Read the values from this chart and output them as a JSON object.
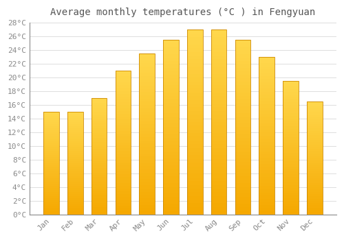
{
  "title": "Average monthly temperatures (°C ) in Fengyuan",
  "months": [
    "Jan",
    "Feb",
    "Mar",
    "Apr",
    "May",
    "Jun",
    "Jul",
    "Aug",
    "Sep",
    "Oct",
    "Nov",
    "Dec"
  ],
  "temperatures": [
    15.0,
    15.0,
    17.0,
    21.0,
    23.5,
    25.5,
    27.0,
    27.0,
    25.5,
    23.0,
    19.5,
    16.5
  ],
  "bar_color_top": "#FFD84D",
  "bar_color_bottom": "#F5A800",
  "bar_edge_color": "#CC8800",
  "ylim": [
    0,
    28
  ],
  "ytick_step": 2,
  "background_color": "#ffffff",
  "grid_color": "#dddddd",
  "title_fontsize": 10,
  "tick_fontsize": 8,
  "tick_label_color": "#888888",
  "bar_width": 0.65,
  "n_gradient_steps": 50
}
